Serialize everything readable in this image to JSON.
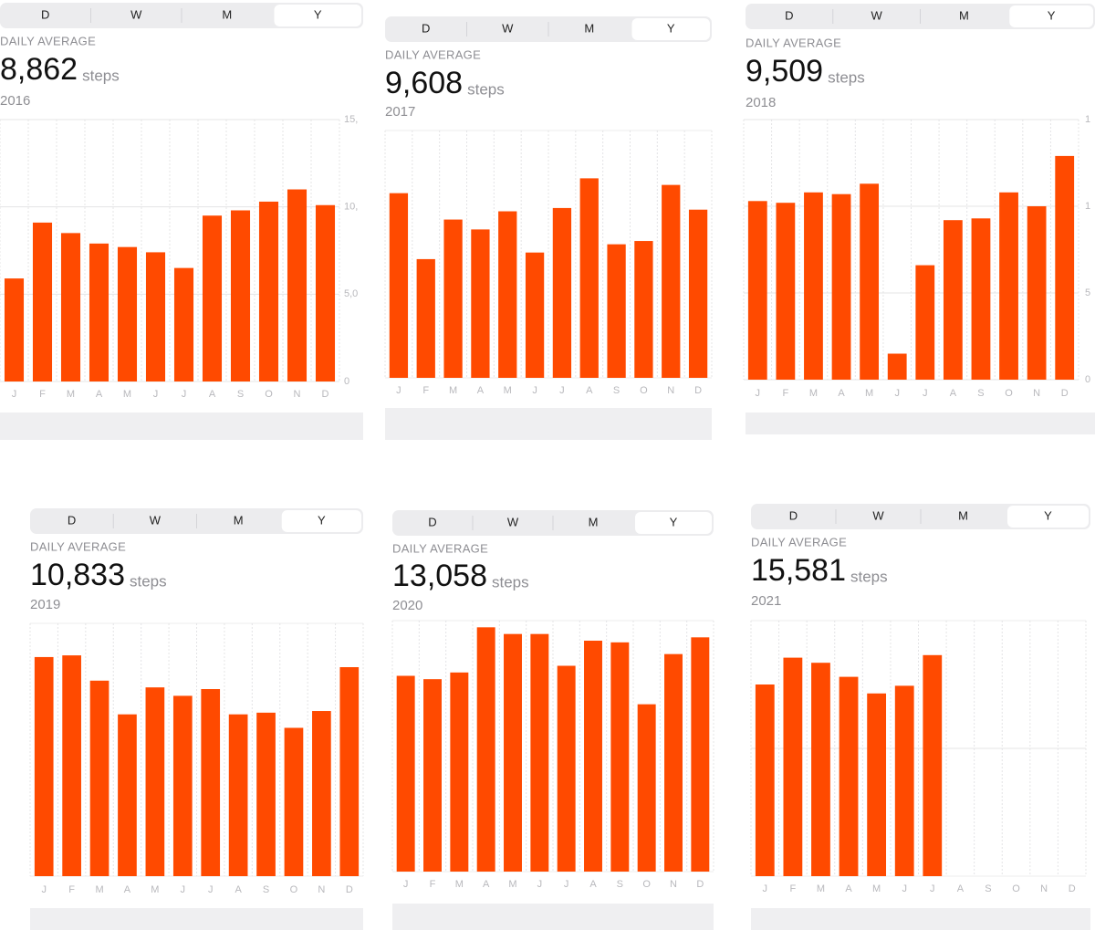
{
  "chart_data": [
    {
      "type": "bar",
      "segments": [
        "D",
        "W",
        "M",
        "Y"
      ],
      "selected": "Y",
      "summary_label": "DAILY AVERAGE",
      "summary_value": "8,862",
      "unit": "steps",
      "subtitle": "2016",
      "categories": [
        "J",
        "F",
        "M",
        "A",
        "M",
        "J",
        "J",
        "A",
        "S",
        "O",
        "N",
        "D"
      ],
      "values": [
        5900,
        9100,
        8500,
        7900,
        7700,
        7400,
        6500,
        9500,
        9800,
        10300,
        11000,
        10100
      ],
      "color": "#ff4a00",
      "ylim": [
        0,
        15000
      ],
      "yticks": [
        0,
        {
          "value": 5000,
          "label": "5,0"
        },
        {
          "value": 10000,
          "label": "10,"
        },
        {
          "value": 15000,
          "label": "15,"
        }
      ],
      "ytick_labels": true,
      "grid": true
    },
    {
      "type": "bar",
      "segments": [
        "D",
        "W",
        "M",
        "Y"
      ],
      "selected": "Y",
      "summary_label": "DAILY AVERAGE",
      "summary_value": "9,608",
      "unit": "steps",
      "subtitle": "2017",
      "categories": [
        "J",
        "F",
        "M",
        "A",
        "M",
        "J",
        "J",
        "A",
        "S",
        "O",
        "N",
        "D"
      ],
      "values": [
        11200,
        7200,
        9600,
        9000,
        10100,
        7600,
        10300,
        12100,
        8100,
        8300,
        11700,
        10200
      ],
      "color": "#ff4a00",
      "ylim": [
        0,
        15000
      ],
      "grid": true
    },
    {
      "type": "bar",
      "segments": [
        "D",
        "W",
        "M",
        "Y"
      ],
      "selected": "Y",
      "summary_label": "DAILY AVERAGE",
      "summary_value": "9,509",
      "unit": "steps",
      "subtitle": "2018",
      "categories": [
        "J",
        "F",
        "M",
        "A",
        "M",
        "J",
        "J",
        "A",
        "S",
        "O",
        "N",
        "D"
      ],
      "values": [
        10300,
        10200,
        10800,
        10700,
        11300,
        1500,
        6600,
        9200,
        9300,
        10800,
        10000,
        12900
      ],
      "color": "#ff4a00",
      "ylim": [
        0,
        15000
      ],
      "yticks": [
        0,
        {
          "value": 5000,
          "label": "5"
        },
        {
          "value": 10000,
          "label": "1"
        },
        {
          "value": 15000,
          "label": "1"
        }
      ],
      "ytick_labels": true,
      "grid": true
    },
    {
      "type": "bar",
      "segments": [
        "D",
        "W",
        "M",
        "Y"
      ],
      "selected": "Y",
      "summary_label": "DAILY AVERAGE",
      "summary_value": "10,833",
      "unit": "steps",
      "subtitle": "2019",
      "categories": [
        "J",
        "F",
        "M",
        "A",
        "M",
        "J",
        "J",
        "A",
        "S",
        "O",
        "N",
        "D"
      ],
      "values": [
        13000,
        13100,
        11600,
        9600,
        11200,
        10700,
        11100,
        9600,
        9700,
        8800,
        9800,
        12400
      ],
      "color": "#ff4a00",
      "ylim": [
        0,
        15000
      ],
      "grid": true
    },
    {
      "type": "bar",
      "segments": [
        "D",
        "W",
        "M",
        "Y"
      ],
      "selected": "Y",
      "summary_label": "DAILY AVERAGE",
      "summary_value": "13,058",
      "unit": "steps",
      "subtitle": "2020",
      "categories": [
        "J",
        "F",
        "M",
        "A",
        "M",
        "J",
        "J",
        "A",
        "S",
        "O",
        "N",
        "D"
      ],
      "values": [
        11700,
        11500,
        11900,
        14600,
        14200,
        14200,
        12300,
        13800,
        13700,
        10000,
        13000,
        14000
      ],
      "color": "#ff4a00",
      "ylim": [
        0,
        15000
      ],
      "grid": true
    },
    {
      "type": "bar",
      "segments": [
        "D",
        "W",
        "M",
        "Y"
      ],
      "selected": "Y",
      "summary_label": "DAILY AVERAGE",
      "summary_value": "15,581",
      "unit": "steps",
      "subtitle": "2021",
      "categories": [
        "J",
        "F",
        "M",
        "A",
        "M",
        "J",
        "J",
        "A",
        "S",
        "O",
        "N",
        "D"
      ],
      "values": [
        15000,
        17100,
        16700,
        15600,
        14300,
        14900,
        17300,
        null,
        null,
        null,
        null,
        null
      ],
      "color": "#ff4a00",
      "ylim": [
        0,
        20000
      ],
      "yticks": [
        10000
      ],
      "ytick_labels": false,
      "grid": true
    }
  ]
}
